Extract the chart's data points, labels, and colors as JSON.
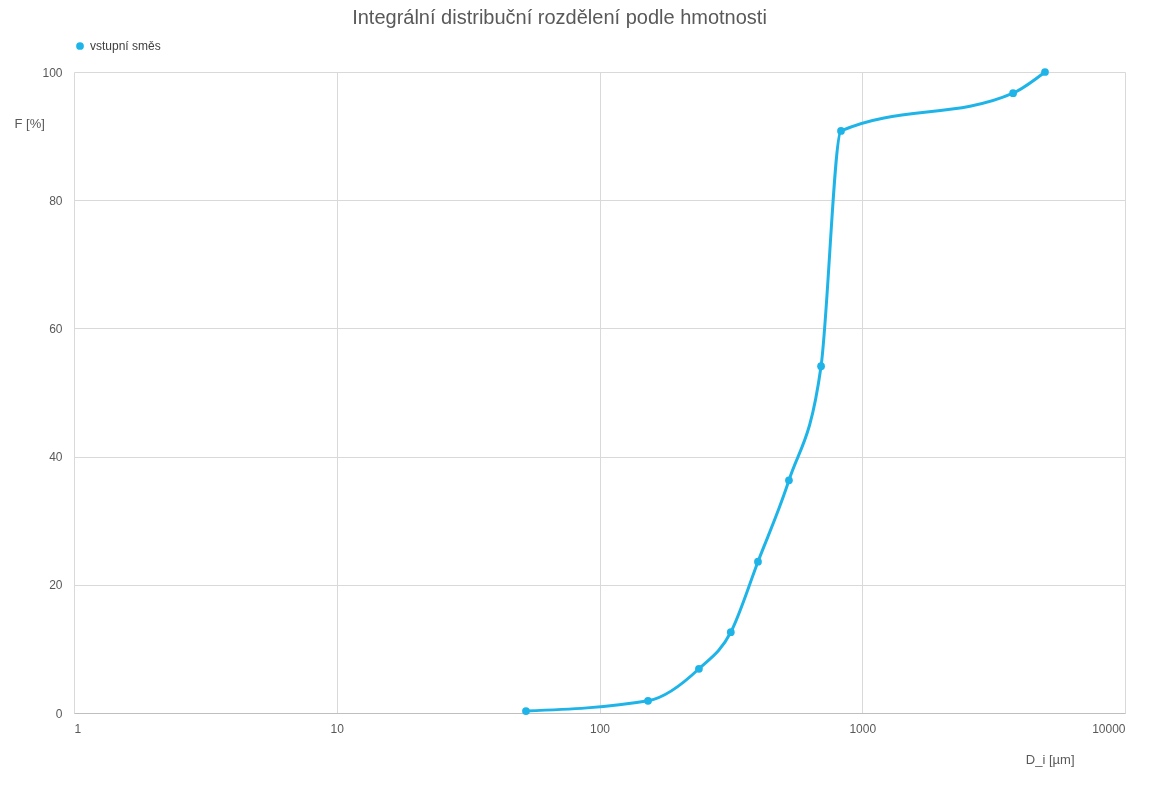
{
  "chart_data": {
    "type": "line",
    "title": "Integrální distribuční rozdělení podle hmotnosti",
    "xlabel": "D_i [µm]",
    "ylabel": "F [%]",
    "x": [
      52.5,
      153,
      239,
      316,
      401,
      526,
      697,
      830,
      3750,
      4960
    ],
    "series": [
      {
        "name": "vstupní směs",
        "color": "#1fb4e8",
        "values": [
          0.3,
          1.9,
          6.9,
          12.6,
          23.6,
          36.3,
          54.1,
          90.8,
          96.7,
          100
        ]
      }
    ],
    "xlim": [
      1,
      10000
    ],
    "xticks": [
      1,
      10,
      100,
      1000,
      10000
    ],
    "ylim": [
      0,
      100
    ],
    "yticks": [
      0,
      20,
      40,
      60,
      80,
      100
    ],
    "log": "x",
    "grid": true,
    "legend": "top",
    "marker": "circle",
    "line_style": "solid"
  }
}
